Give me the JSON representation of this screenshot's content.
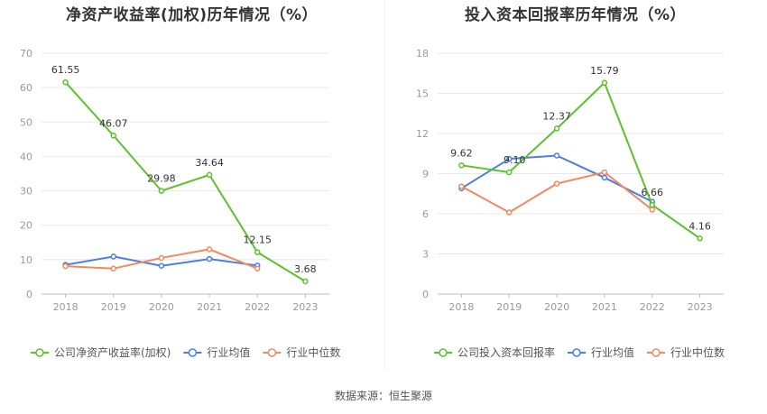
{
  "source": "数据来源：恒生聚源",
  "chart_data": [
    {
      "type": "line",
      "title": "净资产收益率(加权)历年情况（%）",
      "categories": [
        "2018",
        "2019",
        "2020",
        "2021",
        "2022",
        "2023"
      ],
      "ylim": [
        0,
        70
      ],
      "yticks": [
        "0",
        "10",
        "20",
        "30",
        "40",
        "50",
        "60",
        "70"
      ],
      "grid": true,
      "legend_position": "bottom",
      "series": [
        {
          "name": "公司净资产收益率(加权)",
          "color": "#5cc22c",
          "values": [
            61.55,
            46.07,
            29.98,
            34.64,
            12.15,
            3.68
          ],
          "labels": [
            "61.55",
            "46.07",
            "29.98",
            "34.64",
            "12.15",
            "3.68"
          ]
        },
        {
          "name": "行业均值",
          "color": "#4a7fe0",
          "values": [
            8.5,
            10.9,
            8.2,
            10.2,
            8.3,
            null
          ]
        },
        {
          "name": "行业中位数",
          "color": "#f08a5d",
          "values": [
            8.1,
            7.4,
            10.5,
            13.0,
            7.4,
            null
          ]
        }
      ]
    },
    {
      "type": "line",
      "title": "投入资本回报率历年情况（%）",
      "categories": [
        "2018",
        "2019",
        "2020",
        "2021",
        "2022",
        "2023"
      ],
      "ylim": [
        0,
        18
      ],
      "yticks": [
        "0",
        "3",
        "6",
        "9",
        "12",
        "15",
        "18"
      ],
      "grid": true,
      "legend_position": "bottom",
      "series": [
        {
          "name": "公司投入资本回报率",
          "color": "#5cc22c",
          "values": [
            9.62,
            9.1,
            12.37,
            15.79,
            6.66,
            4.16
          ],
          "labels": [
            "9.62",
            "9.10",
            "12.37",
            "15.79",
            "6.66",
            "4.16"
          ]
        },
        {
          "name": "行业均值",
          "color": "#4a7fe0",
          "values": [
            7.9,
            10.1,
            10.35,
            8.7,
            6.9,
            null
          ]
        },
        {
          "name": "行业中位数",
          "color": "#f08a5d",
          "values": [
            8.05,
            6.1,
            8.25,
            9.1,
            6.3,
            null
          ]
        }
      ]
    }
  ]
}
